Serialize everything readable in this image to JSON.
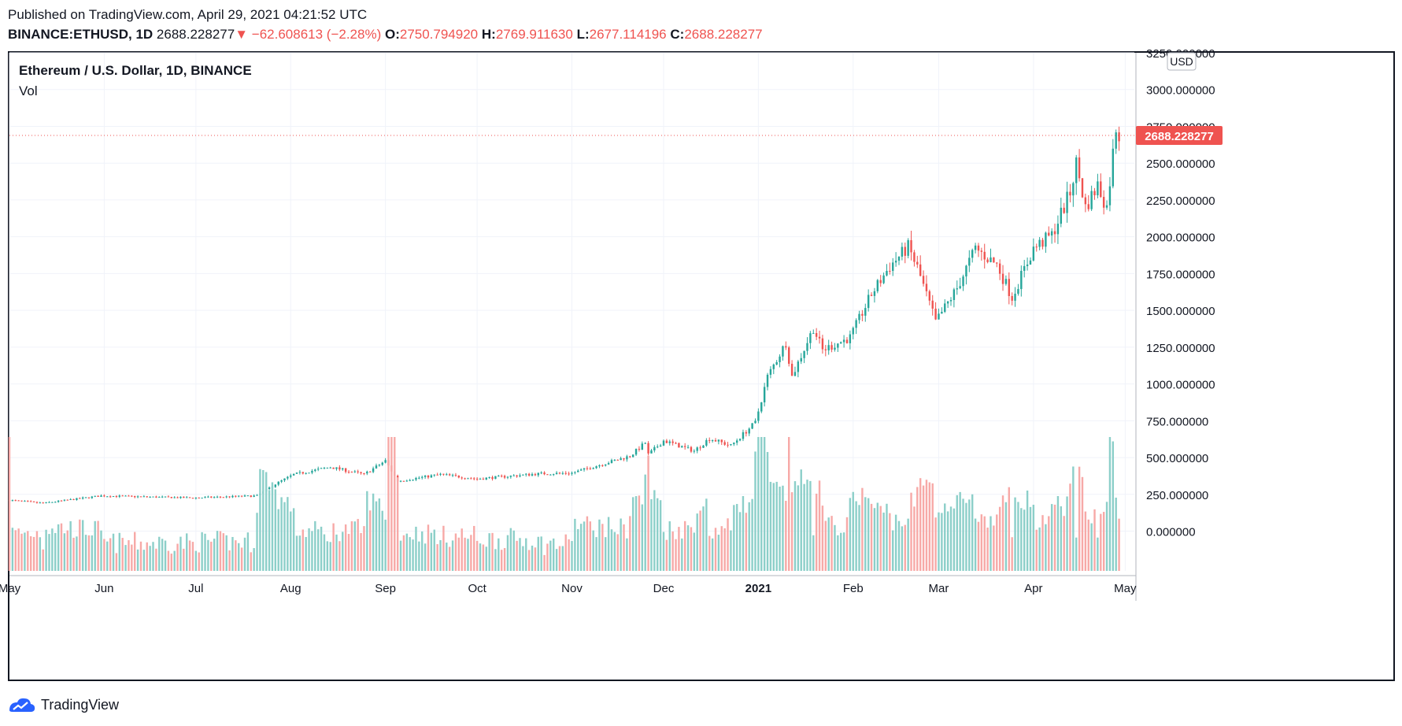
{
  "header": {
    "published": "Published on TradingView.com, April 29, 2021 04:21:52 UTC",
    "symbol": "BINANCE:ETHUSD, 1D",
    "last": "2688.228277",
    "arrow": "▼",
    "change": "−62.608613 (−2.28%)",
    "o_label": "O:",
    "o_value": "2750.794920",
    "h_label": "H:",
    "h_value": "2769.911630",
    "l_label": "L:",
    "l_value": "2677.114196",
    "c_label": "C:",
    "c_value": "2688.228277"
  },
  "legend": {
    "title": "Ethereum / U.S. Dollar, 1D, BINANCE",
    "volume": "Vol"
  },
  "currency_badge": "USD",
  "last_price_label": "2688.228277",
  "footer": {
    "brand": "TradingView"
  },
  "colors": {
    "up": "#26a69a",
    "down": "#ef5350",
    "vol_up": "#8ccfc9",
    "vol_down": "#f7a9a7",
    "grid": "#f0f3fa",
    "price_line": "#ef5350"
  },
  "chart_data": {
    "type": "candlestick",
    "title": "Ethereum / U.S. Dollar, 1D, BINANCE",
    "xlabel": "",
    "ylabel": "USD",
    "y_ticks": [
      "0.000000",
      "250.000000",
      "500.000000",
      "750.000000",
      "1000.000000",
      "1250.000000",
      "1500.000000",
      "1750.000000",
      "2000.000000",
      "2250.000000",
      "2500.000000",
      "2750.000000",
      "3000.000000",
      "3250.000000"
    ],
    "y_tick_values": [
      0,
      250,
      500,
      750,
      1000,
      1250,
      1500,
      1750,
      2000,
      2250,
      2500,
      2750,
      3000,
      3250
    ],
    "ylim": [
      -270,
      3250
    ],
    "x_ticks": [
      "May",
      "Jun",
      "Jul",
      "Aug",
      "Sep",
      "Oct",
      "Nov",
      "Dec",
      "2021",
      "Feb",
      "Mar",
      "Apr",
      "May"
    ],
    "x_tick_dates": [
      "2020-05-01",
      "2020-06-01",
      "2020-07-01",
      "2020-08-01",
      "2020-09-01",
      "2020-10-01",
      "2020-11-01",
      "2020-12-01",
      "2021-01-01",
      "2021-02-01",
      "2021-03-01",
      "2021-04-01",
      "2021-05-01"
    ],
    "xlim": [
      "2020-05-01",
      "2021-05-04"
    ],
    "last_price": 2688.23,
    "grid": true,
    "legend": "top-left",
    "price_keypoints": [
      {
        "date": "2020-05-01",
        "close": 210
      },
      {
        "date": "2020-05-12",
        "close": 190
      },
      {
        "date": "2020-05-31",
        "close": 240
      },
      {
        "date": "2020-06-30",
        "close": 226
      },
      {
        "date": "2020-07-21",
        "close": 240
      },
      {
        "date": "2020-07-27",
        "close": 320
      },
      {
        "date": "2020-08-02",
        "close": 385
      },
      {
        "date": "2020-08-14",
        "close": 435
      },
      {
        "date": "2020-08-25",
        "close": 385
      },
      {
        "date": "2020-09-01",
        "close": 478
      },
      {
        "date": "2020-09-05",
        "close": 340
      },
      {
        "date": "2020-09-19",
        "close": 385
      },
      {
        "date": "2020-10-01",
        "close": 355
      },
      {
        "date": "2020-10-21",
        "close": 390
      },
      {
        "date": "2020-11-01",
        "close": 395
      },
      {
        "date": "2020-11-20",
        "close": 510
      },
      {
        "date": "2020-11-25",
        "close": 600
      },
      {
        "date": "2020-11-26",
        "close": 520
      },
      {
        "date": "2020-12-01",
        "close": 615
      },
      {
        "date": "2020-12-11",
        "close": 545
      },
      {
        "date": "2020-12-16",
        "close": 630
      },
      {
        "date": "2020-12-23",
        "close": 580
      },
      {
        "date": "2020-12-31",
        "close": 737
      },
      {
        "date": "2021-01-04",
        "close": 1050
      },
      {
        "date": "2021-01-10",
        "close": 1280
      },
      {
        "date": "2021-01-12",
        "close": 1050
      },
      {
        "date": "2021-01-19",
        "close": 1380
      },
      {
        "date": "2021-01-22",
        "close": 1230
      },
      {
        "date": "2021-01-31",
        "close": 1315
      },
      {
        "date": "2021-02-07",
        "close": 1610
      },
      {
        "date": "2021-02-13",
        "close": 1800
      },
      {
        "date": "2021-02-19",
        "close": 1930
      },
      {
        "date": "2021-02-22",
        "close": 1790
      },
      {
        "date": "2021-02-28",
        "close": 1420
      },
      {
        "date": "2021-03-07",
        "close": 1650
      },
      {
        "date": "2021-03-13",
        "close": 1920
      },
      {
        "date": "2021-03-20",
        "close": 1810
      },
      {
        "date": "2021-03-25",
        "close": 1590
      },
      {
        "date": "2021-04-01",
        "close": 1920
      },
      {
        "date": "2021-04-07",
        "close": 2010
      },
      {
        "date": "2021-04-13",
        "close": 2300
      },
      {
        "date": "2021-04-15",
        "close": 2500
      },
      {
        "date": "2021-04-18",
        "close": 2200
      },
      {
        "date": "2021-04-22",
        "close": 2350
      },
      {
        "date": "2021-04-25",
        "close": 2200
      },
      {
        "date": "2021-04-28",
        "close": 2750
      },
      {
        "date": "2021-04-29",
        "close": 2688
      }
    ],
    "volume_note": "Volume bars at bottom, colored by candle direction; peaks near Aug 2020, Sep 2020, Jan 2021, Feb 2021, Apr 2021"
  }
}
